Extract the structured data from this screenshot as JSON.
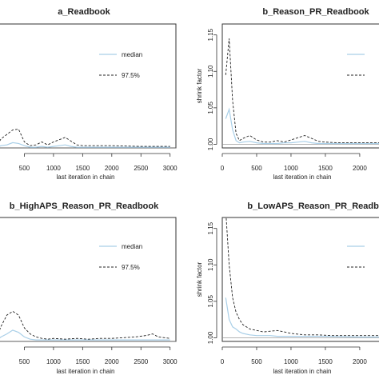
{
  "chart_data": [
    {
      "type": "line",
      "title": "a_Readbook",
      "xlabel": "last iteration in chain",
      "ylabel": "",
      "xlim": [
        0,
        3100
      ],
      "ylim": [
        1.0,
        1.165
      ],
      "xticks": [
        500,
        1000,
        1500,
        2000,
        2500,
        3000
      ],
      "yticks": [],
      "legend": {
        "placement": "top-right",
        "entries": [
          "median",
          "97.5%"
        ]
      },
      "series": [
        {
          "name": "median",
          "color": "#a9cfe8",
          "dash": "none",
          "x": [
            0,
            100,
            200,
            300,
            400,
            500,
            600,
            700,
            800,
            900,
            1000,
            1100,
            1200,
            1300,
            1400,
            1500,
            1700,
            2000,
            2500,
            3000
          ],
          "y": [
            1.0,
            1.003,
            1.004,
            1.007,
            1.006,
            1.003,
            1.001,
            1.001,
            1.002,
            1.001,
            1.002,
            1.003,
            1.004,
            1.002,
            1.001,
            1.001,
            1.001,
            1.001,
            1.001,
            1.001
          ]
        },
        {
          "name": "97.5%",
          "color": "#222222",
          "dash": "3,2",
          "x": [
            0,
            100,
            200,
            300,
            400,
            500,
            600,
            700,
            800,
            900,
            1000,
            1100,
            1200,
            1300,
            1400,
            1500,
            1700,
            2000,
            2500,
            3000
          ],
          "y": [
            1.0,
            1.012,
            1.018,
            1.024,
            1.025,
            1.008,
            1.003,
            1.004,
            1.008,
            1.004,
            1.008,
            1.011,
            1.014,
            1.009,
            1.004,
            1.003,
            1.003,
            1.003,
            1.002,
            1.002
          ]
        }
      ]
    },
    {
      "type": "line",
      "title": "b_Reason_PR_Readbook",
      "xlabel": "last iteration in chain",
      "ylabel": "shrink factor",
      "xlim": [
        0,
        2350
      ],
      "ylim": [
        0.995,
        1.165
      ],
      "xticks": [
        0,
        500,
        1000,
        1500,
        2000
      ],
      "yticks": [
        1.0,
        1.05,
        1.1,
        1.15
      ],
      "yticklabels": [
        "1.00",
        "1.05",
        "1.10",
        "1.15"
      ],
      "legend": {
        "placement": "top-right",
        "entries": []
      },
      "series": [
        {
          "name": "",
          "color": "#a9cfe8",
          "dash": "none",
          "x": [
            50,
            100,
            150,
            200,
            250,
            300,
            400,
            500,
            600,
            700,
            800,
            900,
            1000,
            1100,
            1200,
            1300,
            1400,
            1500,
            1700,
            2000,
            2350
          ],
          "y": [
            1.035,
            1.048,
            1.02,
            1.005,
            1.002,
            1.003,
            1.004,
            1.002,
            1.001,
            1.001,
            1.001,
            1.002,
            1.002,
            1.003,
            1.004,
            1.002,
            1.001,
            1.001,
            1.001,
            1.001,
            1.001
          ]
        },
        {
          "name": "",
          "color": "#222222",
          "dash": "3,2",
          "x": [
            50,
            100,
            150,
            200,
            250,
            300,
            400,
            500,
            600,
            700,
            800,
            900,
            1000,
            1100,
            1200,
            1300,
            1400,
            1500,
            1700,
            2000,
            2350
          ],
          "y": [
            1.095,
            1.145,
            1.06,
            1.015,
            1.005,
            1.008,
            1.012,
            1.006,
            1.003,
            1.003,
            1.005,
            1.003,
            1.006,
            1.009,
            1.012,
            1.008,
            1.004,
            1.003,
            1.002,
            1.002,
            1.002
          ]
        }
      ]
    },
    {
      "type": "line",
      "title": "b_HighAPS_Reason_PR_Readbook",
      "xlabel": "last iteration in chain",
      "ylabel": "",
      "xlim": [
        0,
        3100
      ],
      "ylim": [
        1.0,
        1.165
      ],
      "xticks": [
        500,
        1000,
        1500,
        2000,
        2500,
        3000
      ],
      "yticks": [],
      "legend": {
        "placement": "top-right",
        "entries": [
          "median",
          "97.5%"
        ]
      },
      "series": [
        {
          "name": "median",
          "color": "#a9cfe8",
          "dash": "none",
          "x": [
            0,
            100,
            200,
            300,
            400,
            500,
            600,
            700,
            800,
            1000,
            1200,
            1500,
            2000,
            2500,
            3000
          ],
          "y": [
            1.0,
            1.006,
            1.01,
            1.015,
            1.012,
            1.006,
            1.003,
            1.002,
            1.002,
            1.002,
            1.002,
            1.002,
            1.002,
            1.002,
            1.002
          ]
        },
        {
          "name": "97.5%",
          "color": "#222222",
          "dash": "3,2",
          "x": [
            0,
            100,
            200,
            300,
            400,
            500,
            600,
            700,
            800,
            900,
            1000,
            1200,
            1400,
            1600,
            1800,
            2000,
            2200,
            2400,
            2600,
            2700,
            2800,
            3000
          ],
          "y": [
            1.0,
            1.02,
            1.035,
            1.04,
            1.035,
            1.018,
            1.01,
            1.006,
            1.004,
            1.003,
            1.004,
            1.003,
            1.004,
            1.003,
            1.004,
            1.004,
            1.005,
            1.006,
            1.008,
            1.01,
            1.006,
            1.004
          ]
        }
      ]
    },
    {
      "type": "line",
      "title": "b_LowAPS_Reason_PR_Readbo",
      "xlabel": "last iteration in chain",
      "ylabel": "shrink factor",
      "xlim": [
        0,
        2350
      ],
      "ylim": [
        0.995,
        1.165
      ],
      "xticks": [
        0,
        500,
        1000,
        1500,
        2000
      ],
      "yticks": [
        1.0,
        1.05,
        1.1,
        1.15
      ],
      "yticklabels": [
        "1.00",
        "1.05",
        "1.10",
        "1.15"
      ],
      "legend": {
        "placement": "top-right",
        "entries": []
      },
      "series": [
        {
          "name": "",
          "color": "#a9cfe8",
          "dash": "none",
          "x": [
            50,
            100,
            150,
            200,
            250,
            300,
            400,
            500,
            600,
            700,
            800,
            900,
            1000,
            1200,
            1500,
            2000,
            2350
          ],
          "y": [
            1.055,
            1.025,
            1.015,
            1.012,
            1.008,
            1.006,
            1.004,
            1.003,
            1.003,
            1.003,
            1.002,
            1.002,
            1.002,
            1.002,
            1.002,
            1.001,
            1.001
          ]
        },
        {
          "name": "",
          "color": "#222222",
          "dash": "3,2",
          "x": [
            50,
            100,
            150,
            200,
            250,
            300,
            400,
            500,
            600,
            700,
            800,
            900,
            1000,
            1100,
            1200,
            1400,
            1600,
            1800,
            2000,
            2350
          ],
          "y": [
            1.175,
            1.1,
            1.055,
            1.035,
            1.025,
            1.018,
            1.012,
            1.01,
            1.008,
            1.009,
            1.01,
            1.008,
            1.006,
            1.005,
            1.004,
            1.004,
            1.003,
            1.003,
            1.003,
            1.003
          ]
        }
      ]
    }
  ]
}
